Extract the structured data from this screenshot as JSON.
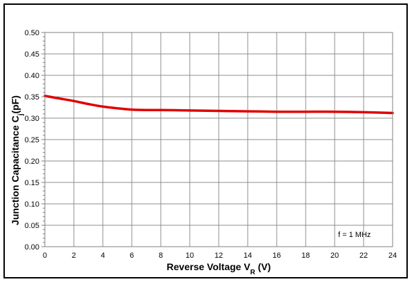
{
  "chart_data": {
    "type": "line",
    "xlabel": {
      "main": "Reverse Voltage V",
      "sub": "R",
      "unit": " (V)"
    },
    "ylabel": {
      "main": "Junction Capacitance C",
      "sub": "j",
      "unit": "(pF)"
    },
    "xlim": [
      0,
      24
    ],
    "ylim": [
      0,
      0.5
    ],
    "xticks": [
      "0",
      "2",
      "4",
      "6",
      "8",
      "10",
      "12",
      "14",
      "16",
      "18",
      "20",
      "22",
      "24"
    ],
    "yticks": [
      "0.00",
      "0.05",
      "0.10",
      "0.15",
      "0.20",
      "0.25",
      "0.30",
      "0.35",
      "0.40",
      "0.45",
      "0.50"
    ],
    "grid": true,
    "annotation": "f = 1 MHz",
    "series": [
      {
        "color": "#e00000",
        "x": [
          0,
          1,
          2,
          3,
          4,
          5,
          6,
          7,
          8,
          10,
          12,
          14,
          16,
          18,
          20,
          22,
          24
        ],
        "y": [
          0.352,
          0.346,
          0.34,
          0.333,
          0.327,
          0.323,
          0.32,
          0.319,
          0.319,
          0.318,
          0.317,
          0.316,
          0.315,
          0.315,
          0.315,
          0.314,
          0.312
        ]
      }
    ]
  }
}
